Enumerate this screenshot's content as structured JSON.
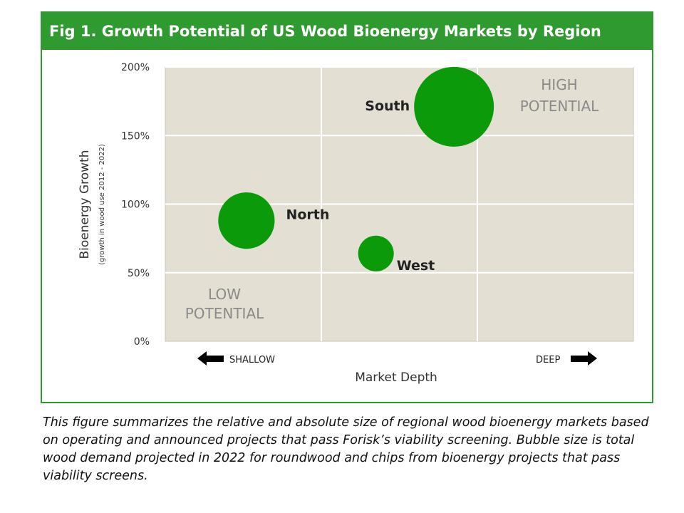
{
  "colors": {
    "frame": "#2f9a2f",
    "title_bar": "#2f9a2f",
    "title_text": "#ffffff",
    "plot_background": "#e3e0d3",
    "gridline": "#ffffff",
    "bubble": "#0a9a0a",
    "quadrant_text": "#8a8a8a"
  },
  "chart_data": {
    "type": "bubble",
    "title": "Fig 1. Growth Potential of US Wood Bioenergy Markets by Region",
    "xlabel": "Market Depth",
    "ylabel": "Bioenergy Growth",
    "ylabel_sub": "(growth in wood use 2012 - 2022)",
    "x_left_label": "SHALLOW",
    "x_right_label": "DEEP",
    "xlim": [
      0,
      3
    ],
    "ylim": [
      0,
      2
    ],
    "y_ticks": [
      {
        "value": 0,
        "label": "0%"
      },
      {
        "value": 0.5,
        "label": "50%"
      },
      {
        "value": 1.0,
        "label": "100%"
      },
      {
        "value": 1.5,
        "label": "150%"
      },
      {
        "value": 2.0,
        "label": "200%"
      }
    ],
    "x_gridlines": [
      1,
      2
    ],
    "grid": true,
    "points": [
      {
        "name": "South",
        "x": 1.85,
        "y": 1.71,
        "size": 1.0,
        "label_side": "left"
      },
      {
        "name": "North",
        "x": 0.52,
        "y": 0.88,
        "size": 0.5,
        "label_side": "right"
      },
      {
        "name": "West",
        "x": 1.35,
        "y": 0.64,
        "size": 0.2,
        "label_side": "right-below"
      }
    ],
    "annotations": {
      "high_potential": [
        "HIGH",
        "POTENTIAL"
      ],
      "low_potential": [
        "LOW",
        "POTENTIAL"
      ]
    }
  },
  "caption": "This figure summarizes the relative and absolute size of regional wood bioenergy markets based on operating and announced projects that pass Forisk’s viability screening. Bubble size is total wood demand projected in 2022 for roundwood and chips from bioenergy projects that pass viability screens."
}
